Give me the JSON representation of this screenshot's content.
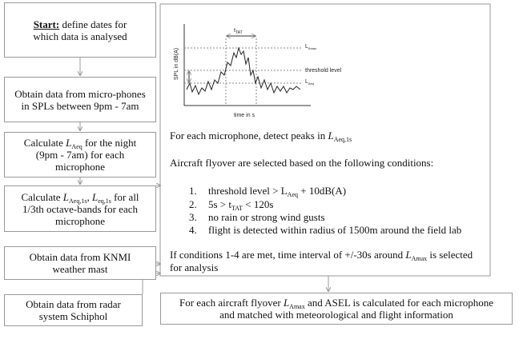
{
  "steps": [
    {
      "label": "Start:",
      "text": "define dates for which data is analysed"
    },
    {
      "text": "Obtain data from micro-phones in SPLs between 9pm - 7am"
    },
    {
      "text_before": "Calculate ",
      "symbol": "L",
      "subscript": "Aeq",
      "text_after": " for the night (9pm - 7am) for each microphone"
    },
    {
      "text_before": "Calculate ",
      "symbol_1": "L",
      "subscript_1": "Aeq,1s",
      "separator": ", ",
      "symbol_2": "L",
      "subscript_2": "eq,1s",
      "text_after": " for all 1/3th octave-bands for each microphone"
    },
    {
      "text": "Obtain data from KNMI weather mast"
    },
    {
      "text": "Obtain data from radar system Schiphol"
    }
  ],
  "graph": {
    "y_label": "SPL in dB(A)",
    "x_label": "time in s",
    "tat_symbol": "t",
    "tat_subscript": "TAT",
    "lamax_symbol": "L",
    "lamax_subscript": "Amax",
    "threshold": "threshold level",
    "laeq_symbol": "L",
    "laeq_subscript": "Aeq"
  },
  "analysis": {
    "peaks": {
      "text": "For each microphone, detect peaks in ",
      "symbol": "L",
      "subscript": "Aeq,1s"
    },
    "selection": "Aircraft flyover are selected based on the following conditions:",
    "conditions": [
      {
        "number": "1.",
        "text_before": "threshold level > L",
        "subscript": "Aeq",
        "text_after": " + 10dB(A)"
      },
      {
        "number": "2.",
        "text_before": "5s > t",
        "subscript": "TAT",
        "text_after": " < 120s"
      },
      {
        "number": "3.",
        "text": "no rain or strong wind gusts"
      },
      {
        "number": "4.",
        "text": "flight is detected within radius of 1500m around the field lab"
      }
    ],
    "interval": {
      "text_before": "If conditions 1-4 are met, time interval of +/-30s around ",
      "symbol": "L",
      "subscript": "Amax",
      "text_after": " is selected for analysis"
    }
  },
  "result": {
    "text_before": "For each aircraft flyover ",
    "symbol": "L",
    "subscript": "Amax",
    "text_after": " and ASEL is calculated for each microphone and matched with meteorological and flight information"
  }
}
